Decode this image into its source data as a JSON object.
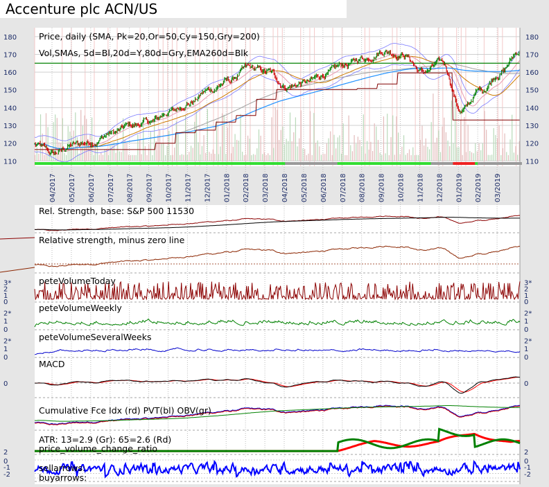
{
  "chart_data": {
    "type": "line",
    "title": "Accenture plc ACN/US",
    "colors": {
      "price_up": "#008000",
      "price_down": "#cc0000",
      "sma5": "#0000ff",
      "sma20": "#e6b800",
      "sma80": "#8c8c8c",
      "ema260": "#1a1a1a",
      "sma200": "#1e90ff",
      "sma150": "#a0a0a0",
      "sma50": "#cc7a00",
      "panel_bg": "#ffffff",
      "page_bg": "#e6e6e6",
      "rs": "#8b2500",
      "vol_today": "#8b0000",
      "vol_weekly": "#008000",
      "vol_several": "#0000cc",
      "macd": "#000000",
      "macd_signal": "#ff0000",
      "atr13": "#008000",
      "atr65": "#ff0000",
      "pvcr": "#0000ff",
      "support": "#800000",
      "resistance": "#008000"
    },
    "x_ticks": [
      "04/2017",
      "05/2017",
      "06/2017",
      "07/2017",
      "08/2017",
      "09/2017",
      "10/2017",
      "11/2017",
      "12/2017",
      "01/2018",
      "02/2018",
      "03/2018",
      "04/2018",
      "05/2018",
      "06/2018",
      "07/2018",
      "08/2018",
      "09/2018",
      "10/2018",
      "11/2018",
      "12/2018",
      "01/2019",
      "02/2019",
      "03/2019"
    ],
    "price_panel": {
      "label_line1": "Price, daily (SMA, Pk=20,Or=50,Cy=150,Gry=200)",
      "label_line2": "Vol,SMAs, 5d=Bl,20d=Y,80d=Gry,EMA260d=Blk",
      "y_ticks": [
        110,
        120,
        130,
        140,
        150,
        160,
        170,
        180
      ],
      "ylim": [
        107,
        185
      ],
      "price_anchors": [
        [
          "03/2017",
          119
        ],
        [
          "04/2017",
          114
        ],
        [
          "05/2017",
          119
        ],
        [
          "06/2017",
          121
        ],
        [
          "07/2017",
          126
        ],
        [
          "08/2017",
          130
        ],
        [
          "09/2017",
          132
        ],
        [
          "10/2017",
          138
        ],
        [
          "11/2017",
          143
        ],
        [
          "12/2017",
          150
        ],
        [
          "01/2018",
          155
        ],
        [
          "02/2018",
          162
        ],
        [
          "03/2018",
          160
        ],
        [
          "04/2018",
          152
        ],
        [
          "05/2018",
          154
        ],
        [
          "06/2018",
          159
        ],
        [
          "07/2018",
          164
        ],
        [
          "08/2018",
          168
        ],
        [
          "09/2018",
          172
        ],
        [
          "10/2018",
          170
        ],
        [
          "11/2018",
          160
        ],
        [
          "12/2018",
          165
        ],
        [
          "01/2019",
          138
        ],
        [
          "02/2019",
          150
        ],
        [
          "03/2019",
          160
        ],
        [
          "04/2019",
          172
        ]
      ],
      "resistance_level": 165,
      "support_level_final": 133
    },
    "panels": [
      {
        "name": "relative-strength",
        "label": "Rel. Strength, base: S&P 500 11530"
      },
      {
        "name": "relative-strength-minus-zero",
        "label": "Relative strength, minus zero line"
      },
      {
        "name": "pete-volume-today",
        "label": "peteVolumeToday",
        "y_ticks": [
          "0",
          "1",
          "2",
          "3*"
        ]
      },
      {
        "name": "pete-volume-weekly",
        "label": "peteVolumeWeekly",
        "y_ticks": [
          "0",
          "1",
          "2*"
        ]
      },
      {
        "name": "pete-volume-several-weeks",
        "label": "peteVolumeSeveralWeeks",
        "y_ticks": [
          "0",
          "1",
          "2*"
        ]
      },
      {
        "name": "macd",
        "label": "MACD",
        "y_ticks": [
          "0"
        ]
      },
      {
        "name": "cumulative-force-index",
        "label": "Cumulative Fce Idx (rd) PVT(bl) OBV(gr)"
      },
      {
        "name": "atr",
        "label": "ATR: 13=2.9 (Gr): 65=2.6 (Rd)"
      },
      {
        "name": "price-volume-change-ratio",
        "label": "price_volume_change_ratio",
        "y_ticks": [
          "2",
          "0",
          "-1",
          "-2"
        ]
      }
    ],
    "arrow_labels": [
      "sellarrows:",
      "buyarrows:"
    ]
  }
}
